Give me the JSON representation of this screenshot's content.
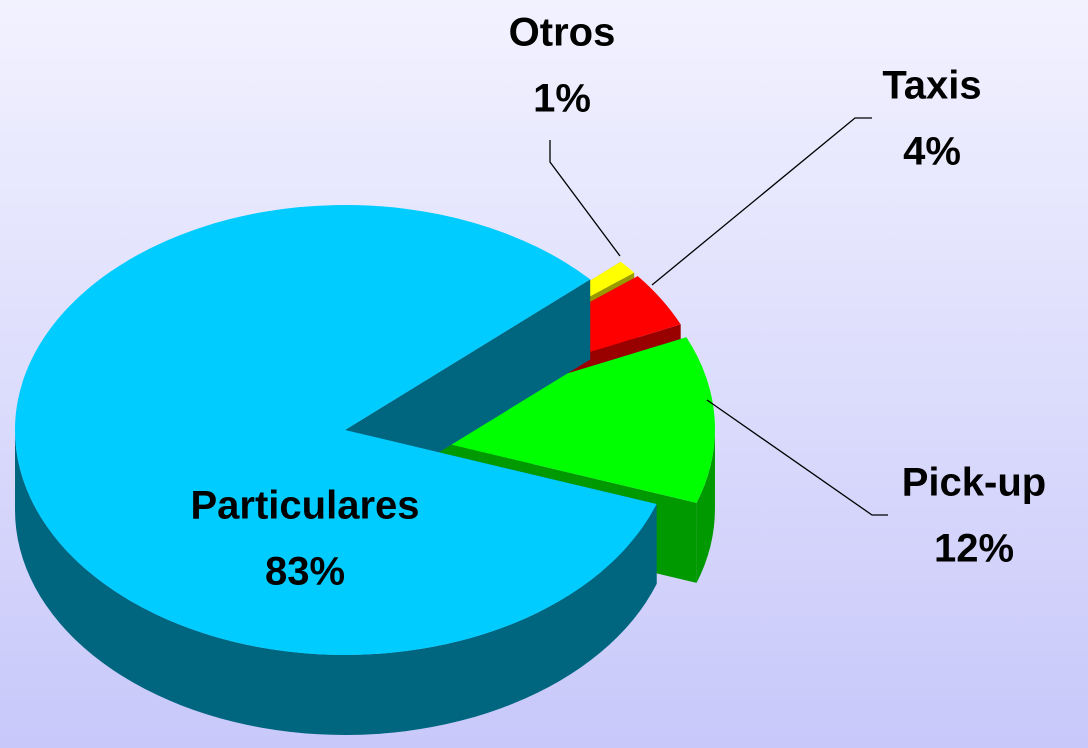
{
  "chart_data": {
    "type": "pie",
    "categories": [
      "Otros",
      "Taxis",
      "Pick-up",
      "Particulares"
    ],
    "values": [
      1,
      4,
      12,
      83
    ],
    "value_labels": [
      "1%",
      "4%",
      "12%",
      "83%"
    ],
    "colors": [
      "#ffff00",
      "#ff0000",
      "#00ff00",
      "#00ccff"
    ],
    "side_colors": [
      "#999900",
      "#990000",
      "#009900",
      "#006680"
    ]
  }
}
